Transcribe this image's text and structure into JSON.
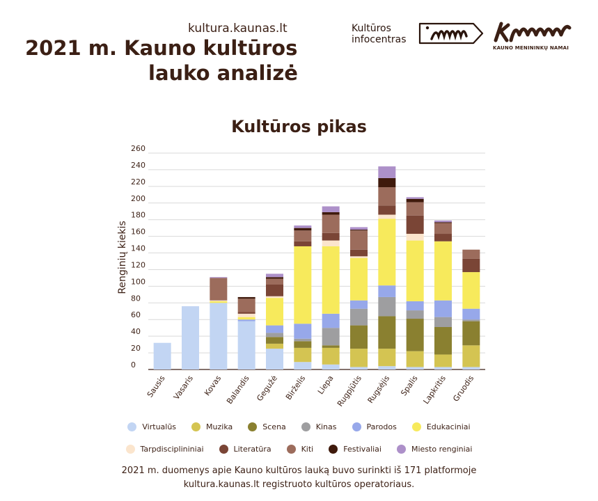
{
  "header": {
    "site": "kultura.kaunas.lt",
    "title_line1": "2021 m. Kauno kultūros",
    "title_line2": "lauko analizė",
    "logo_info_line1": "Kultūros",
    "logo_info_line2": "infocentras",
    "logo_kmn_text": "KAUNO MENININKŲ NAMAI"
  },
  "chart_data": {
    "type": "bar",
    "stacked": true,
    "title": "Kultūros pikas",
    "ylabel": "Renginių kiekis",
    "xlabel": "",
    "ylim": [
      0,
      260
    ],
    "yticks": [
      0,
      20,
      40,
      60,
      80,
      100,
      120,
      140,
      160,
      180,
      200,
      220,
      240,
      260
    ],
    "grid": true,
    "legend_position": "bottom",
    "categories": [
      "Sausis",
      "Vasaris",
      "Kovas",
      "Balandis",
      "Gegužė",
      "Birželis",
      "Liepa",
      "Rugpjūtis",
      "Rugsėjis",
      "Spalis",
      "Lapkritis",
      "Gruodis"
    ],
    "series": [
      {
        "name": "Virtualūs",
        "color": "#c2d5f3",
        "values": [
          32,
          76,
          80,
          58,
          25,
          9,
          6,
          3,
          4,
          3,
          3,
          3
        ]
      },
      {
        "name": "Muzika",
        "color": "#d4c452",
        "values": [
          0,
          0,
          0,
          0,
          6,
          17,
          20,
          22,
          21,
          19,
          15,
          26
        ]
      },
      {
        "name": "Scena",
        "color": "#8a8030",
        "values": [
          0,
          0,
          0,
          0,
          8,
          8,
          3,
          28,
          39,
          39,
          33,
          29
        ]
      },
      {
        "name": "Kinas",
        "color": "#9e9ea0",
        "values": [
          0,
          0,
          0,
          0,
          5,
          3,
          21,
          20,
          23,
          10,
          12,
          2
        ]
      },
      {
        "name": "Parodos",
        "color": "#97a8ea",
        "values": [
          0,
          0,
          0,
          2,
          9,
          18,
          17,
          10,
          14,
          11,
          20,
          13
        ]
      },
      {
        "name": "Edukaciniai",
        "color": "#f7ea5c",
        "values": [
          0,
          0,
          2,
          3,
          33,
          93,
          81,
          51,
          80,
          73,
          71,
          44
        ]
      },
      {
        "name": "Tarpdisciplininiai",
        "color": "#fbe5cd",
        "values": [
          0,
          0,
          1,
          4,
          2,
          0,
          7,
          2,
          5,
          8,
          0,
          0
        ]
      },
      {
        "name": "Literatūra",
        "color": "#7a4536",
        "values": [
          0,
          0,
          0,
          2,
          14,
          6,
          9,
          8,
          11,
          22,
          9,
          16
        ]
      },
      {
        "name": "Kiti",
        "color": "#9c6c5c",
        "values": [
          0,
          0,
          27,
          16,
          7,
          13,
          22,
          23,
          22,
          16,
          13,
          11
        ]
      },
      {
        "name": "Festivaliai",
        "color": "#3f1a0c",
        "values": [
          0,
          0,
          0,
          2,
          2,
          3,
          3,
          1,
          11,
          4,
          1,
          0
        ]
      },
      {
        "name": "Miesto renginiai",
        "color": "#ad90c9",
        "values": [
          0,
          0,
          1,
          0,
          4,
          3,
          7,
          3,
          14,
          2,
          2,
          0
        ]
      }
    ]
  },
  "footnote": {
    "line1": "2021 m. duomenys apie Kauno kultūros lauką buvo surinkti iš 171 platformoje",
    "line2": "kultura.kaunas.lt registruoto kultūros operatoriaus."
  }
}
